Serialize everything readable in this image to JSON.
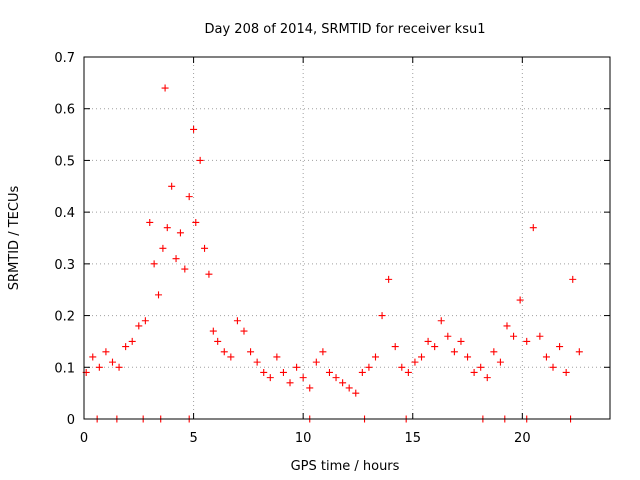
{
  "chart_data": {
    "type": "scatter",
    "title": "Day 208 of 2014, SRMTID for receiver ksu1",
    "xlabel": "GPS time / hours",
    "ylabel": "SRMTID / TECUs",
    "xlim": [
      0,
      24
    ],
    "ylim": [
      0,
      0.7
    ],
    "x_ticks": [
      0,
      5,
      10,
      15,
      20
    ],
    "y_ticks": [
      0,
      0.1,
      0.2,
      0.3,
      0.4,
      0.5,
      0.6,
      0.7
    ],
    "x_tick_labels": [
      "0",
      "5",
      "10",
      "15",
      "20"
    ],
    "y_tick_labels": [
      "0",
      "0.1",
      "0.2",
      "0.3",
      "0.4",
      "0.5",
      "0.6",
      "0.7"
    ],
    "grid": true,
    "marker": "plus",
    "color": "#ff0000",
    "series": [
      {
        "name": "SRMTID",
        "x": [
          0.1,
          0.4,
          0.7,
          1.0,
          1.3,
          1.6,
          1.9,
          2.2,
          2.5,
          2.8,
          3.0,
          3.2,
          3.4,
          3.6,
          3.7,
          3.8,
          4.0,
          4.2,
          4.4,
          4.6,
          4.8,
          5.0,
          5.1,
          5.3,
          5.5,
          5.7,
          5.9,
          6.1,
          6.4,
          6.7,
          7.0,
          7.3,
          7.6,
          7.9,
          8.2,
          8.5,
          8.8,
          9.1,
          9.4,
          9.7,
          10.0,
          10.3,
          10.6,
          10.9,
          11.2,
          11.5,
          11.8,
          12.1,
          12.4,
          12.7,
          13.0,
          13.3,
          13.6,
          13.9,
          14.2,
          14.5,
          14.8,
          15.1,
          15.4,
          15.7,
          16.0,
          16.3,
          16.6,
          16.9,
          17.2,
          17.5,
          17.8,
          18.1,
          18.4,
          18.7,
          19.0,
          19.3,
          19.6,
          19.9,
          20.2,
          20.5,
          20.8,
          21.1,
          21.4,
          21.7,
          22.0,
          22.3,
          22.6
        ],
        "y": [
          0.09,
          0.12,
          0.1,
          0.13,
          0.11,
          0.1,
          0.14,
          0.15,
          0.18,
          0.19,
          0.38,
          0.3,
          0.24,
          0.33,
          0.64,
          0.37,
          0.45,
          0.31,
          0.36,
          0.29,
          0.43,
          0.56,
          0.38,
          0.5,
          0.33,
          0.28,
          0.17,
          0.15,
          0.13,
          0.12,
          0.19,
          0.17,
          0.13,
          0.11,
          0.09,
          0.08,
          0.12,
          0.09,
          0.07,
          0.1,
          0.08,
          0.06,
          0.11,
          0.13,
          0.09,
          0.08,
          0.07,
          0.06,
          0.05,
          0.09,
          0.1,
          0.12,
          0.2,
          0.27,
          0.14,
          0.1,
          0.09,
          0.11,
          0.12,
          0.15,
          0.14,
          0.19,
          0.16,
          0.13,
          0.15,
          0.12,
          0.09,
          0.1,
          0.08,
          0.13,
          0.11,
          0.18,
          0.16,
          0.23,
          0.15,
          0.37,
          0.16,
          0.12,
          0.1,
          0.14,
          0.09,
          0.27,
          0.13
        ]
      },
      {
        "name": "zero-level markers",
        "x": [
          0.6,
          1.5,
          2.7,
          3.5,
          4.8,
          10.3,
          12.8,
          14.7,
          18.2,
          19.2,
          20.2,
          22.2
        ],
        "y": [
          0,
          0,
          0,
          0,
          0,
          0,
          0,
          0,
          0,
          0,
          0,
          0
        ]
      }
    ]
  }
}
